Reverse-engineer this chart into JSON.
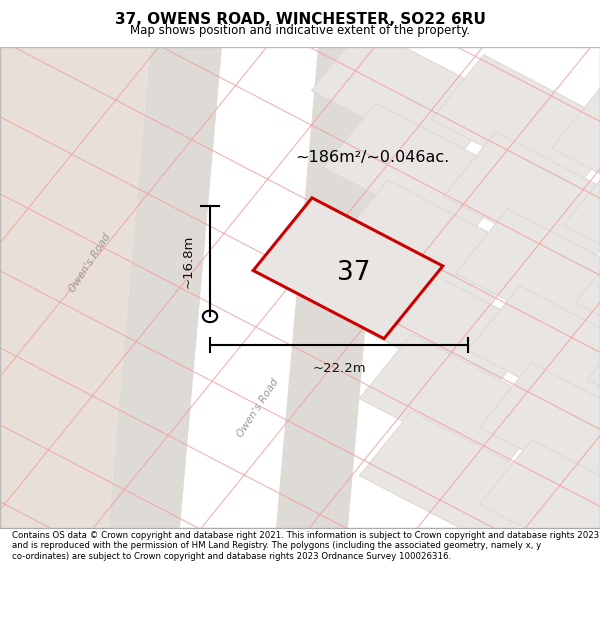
{
  "title_line1": "37, OWENS ROAD, WINCHESTER, SO22 6RU",
  "title_line2": "Map shows position and indicative extent of the property.",
  "footer_text": "Contains OS data © Crown copyright and database right 2021. This information is subject to Crown copyright and database rights 2023 and is reproduced with the permission of HM Land Registry. The polygons (including the associated geometry, namely x, y co-ordinates) are subject to Crown copyright and database rights 2023 Ordnance Survey 100026316.",
  "map_bg_color": "#f0ede8",
  "block_color": "#e8e5e2",
  "block_edge_color": "#dedad5",
  "grid_line_color": "#f0a0a0",
  "road_color": "#dedad5",
  "left_tan_color": "#e8e0d8",
  "plot_outline_color": "#cc0000",
  "plot_fill_color": "#e8e5e2",
  "dimension_color": "#111111",
  "area_text": "~186m²/~0.046ac.",
  "number_text": "37",
  "dim_width": "~22.2m",
  "dim_height": "~16.8m",
  "road_label": "Owen's Road",
  "footer_bg_color": "#ffffff",
  "title_bg_color": "#ffffff"
}
